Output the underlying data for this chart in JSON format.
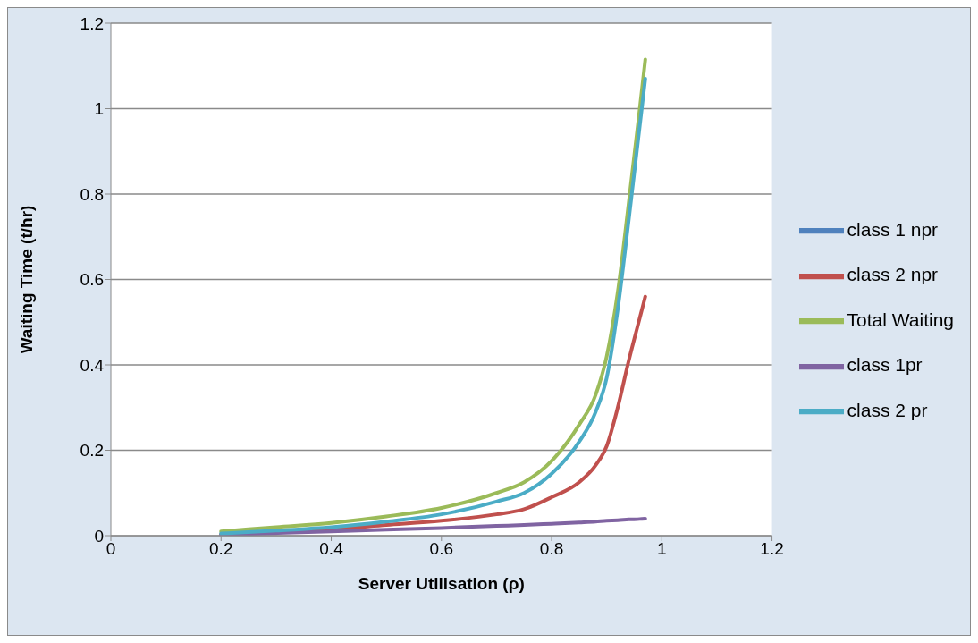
{
  "chart_data": {
    "type": "line",
    "xlabel": "Server Utilisation (ρ)",
    "ylabel": "Waiting Time (t/hr)",
    "x": [
      0.2,
      0.3,
      0.4,
      0.5,
      0.6,
      0.7,
      0.75,
      0.8,
      0.85,
      0.88,
      0.9,
      0.92,
      0.94,
      0.96,
      0.97
    ],
    "series": [
      {
        "name": "class 1 npr",
        "color": "#4f81bd",
        "values": [
          null,
          null,
          null,
          null,
          null,
          null,
          null,
          null,
          null,
          null,
          null,
          null,
          null,
          null,
          null
        ]
      },
      {
        "name": "class 2 npr",
        "color": "#c0504d",
        "values": [
          0.003,
          0.008,
          0.015,
          0.025,
          0.035,
          0.05,
          0.062,
          0.09,
          0.125,
          0.165,
          0.21,
          0.3,
          0.41,
          0.51,
          0.56
        ]
      },
      {
        "name": "Total Waiting",
        "color": "#9bbb59",
        "values": [
          0.01,
          0.02,
          0.03,
          0.045,
          0.065,
          0.1,
          0.125,
          0.175,
          0.26,
          0.33,
          0.42,
          0.57,
          0.78,
          1.0,
          1.115
        ]
      },
      {
        "name": "class 1pr",
        "color": "#8064a2",
        "values": [
          0.002,
          0.006,
          0.01,
          0.014,
          0.018,
          0.023,
          0.025,
          0.028,
          0.031,
          0.033,
          0.035,
          0.036,
          0.038,
          0.039,
          0.04
        ]
      },
      {
        "name": "class 2 pr",
        "color": "#4bacc6",
        "values": [
          0.005,
          0.012,
          0.02,
          0.033,
          0.05,
          0.08,
          0.1,
          0.145,
          0.22,
          0.29,
          0.37,
          0.53,
          0.74,
          0.96,
          1.07
        ]
      }
    ],
    "xlim": [
      0,
      1.2
    ],
    "xticks": [
      0,
      0.2,
      0.4,
      0.6,
      0.8,
      1,
      1.2
    ],
    "ylim": [
      0,
      1.2
    ],
    "yticks": [
      0,
      0.2,
      0.4,
      0.6,
      0.8,
      1,
      1.2
    ],
    "grid": "y",
    "legend": "right",
    "marker": "none",
    "line_style": "solid"
  }
}
